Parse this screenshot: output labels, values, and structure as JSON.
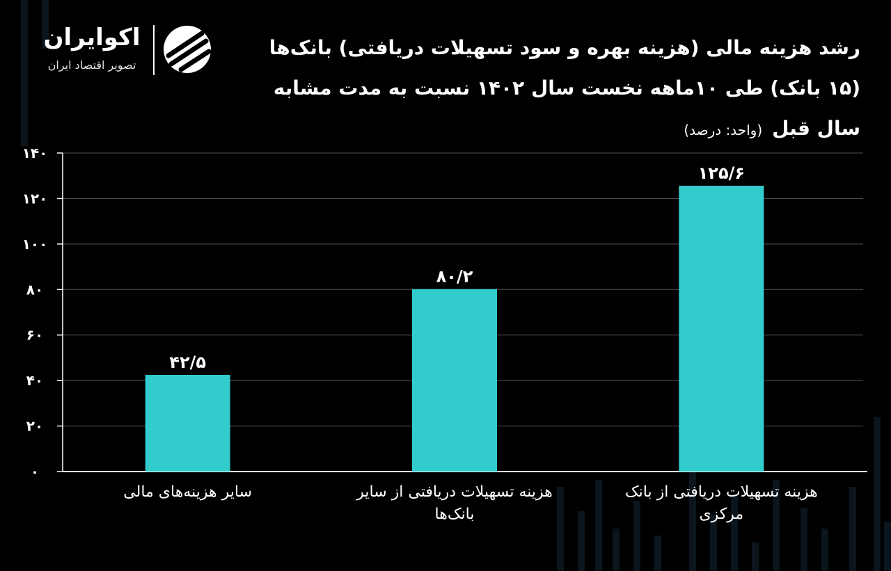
{
  "brand": {
    "name": "اکوایران",
    "tagline": "تصویر اقتصاد ایران"
  },
  "title": "رشد هزینه مالی (هزینه بهره و سود تسهیلات دریافتی) بانک‌ها (۱۵ بانک) طی ۱۰ماهه نخست سال ۱۴۰۲ نسبت به مدت مشابه سال قبل",
  "unit_note": "(واحد: درصد)",
  "colors": {
    "background": "#000000",
    "bar": "#33cccc",
    "text": "#ffffff",
    "grid": "#555555"
  },
  "chart_data": {
    "type": "bar",
    "categories": [
      "هزینه تسهیلات دریافتی از بانک مرکزی",
      "هزینه تسهیلات دریافتی از سایر بانک‌ها",
      "سایر هزینه‌های مالی"
    ],
    "values": [
      125.6,
      80.2,
      42.5
    ],
    "value_labels": [
      "۱۲۵/۶",
      "۸۰/۲",
      "۴۲/۵"
    ],
    "ylim": [
      0,
      140
    ],
    "yticks": [
      0,
      20,
      40,
      60,
      80,
      100,
      120,
      140
    ],
    "ytick_labels": [
      "۰",
      "۲۰",
      "۴۰",
      "۶۰",
      "۸۰",
      "۱۰۰",
      "۱۲۰",
      "۱۴۰"
    ],
    "grid": true,
    "xlabel": "",
    "ylabel": ""
  }
}
